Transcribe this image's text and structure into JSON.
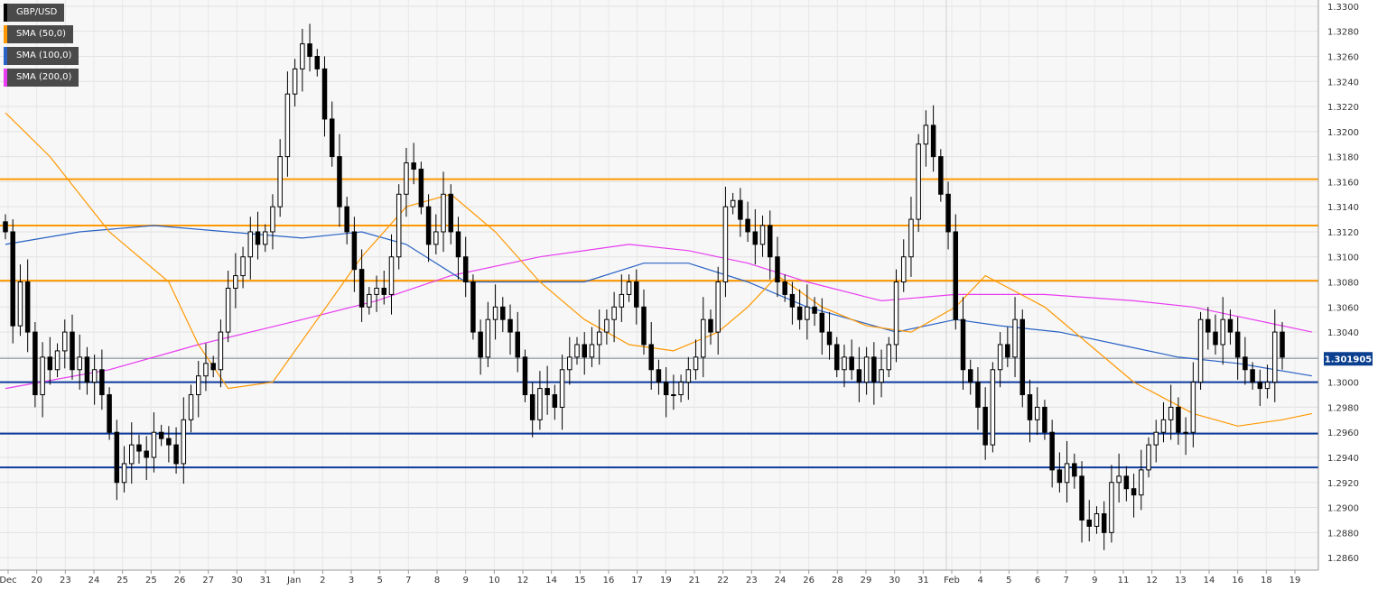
{
  "legend": {
    "symbol": "GBP/USD",
    "sma50": "SMA (50,0)",
    "sma100": "SMA (100,0)",
    "sma200": "SMA (200,0)"
  },
  "colors": {
    "symbol": "#000000",
    "sma50": "#ff9800",
    "sma100": "#2962c4",
    "sma200": "#e83cf0",
    "resistance": "#ff9800",
    "support": "#0d3a9c",
    "current": "#7f8c9c"
  },
  "chart_data": {
    "type": "candlestick",
    "symbol": "GBP/USD",
    "ylim": [
      1.285,
      1.3305
    ],
    "grid": true,
    "y_ticks": [
      "1.3300",
      "1.3280",
      "1.3260",
      "1.3240",
      "1.3220",
      "1.3200",
      "1.3180",
      "1.3160",
      "1.3140",
      "1.3120",
      "1.3100",
      "1.3080",
      "1.3060",
      "1.3040",
      "1.3020",
      "1.3000",
      "1.2980",
      "1.2960",
      "1.2940",
      "1.2920",
      "1.2900",
      "1.2880",
      "1.2860"
    ],
    "x_labels": [
      "Dec",
      "20",
      "23",
      "24",
      "25",
      "25",
      "26",
      "27",
      "30",
      "31",
      "Jan",
      "2",
      "3",
      "5",
      "7",
      "8",
      "9",
      "10",
      "12",
      "14",
      "15",
      "16",
      "17",
      "19",
      "21",
      "22",
      "23",
      "24",
      "26",
      "28",
      "29",
      "30",
      "31",
      "Feb",
      "4",
      "5",
      "6",
      "7",
      "9",
      "11",
      "12",
      "13",
      "14",
      "16",
      "18",
      "19"
    ],
    "current_price": 1.3019,
    "current_price_label": "1.301905",
    "horizontal_levels": {
      "resistance": [
        1.3162,
        1.3125,
        1.3081
      ],
      "support": [
        1.3,
        1.2959,
        1.2932
      ]
    },
    "closes": [
      1.312,
      1.3045,
      1.308,
      1.304,
      1.299,
      1.302,
      1.301,
      1.3025,
      1.304,
      1.301,
      1.302,
      1.3,
      1.301,
      1.299,
      1.296,
      1.292,
      1.2935,
      1.295,
      1.2945,
      1.294,
      1.296,
      1.2955,
      1.295,
      1.2935,
      1.297,
      1.299,
      1.3005,
      1.3015,
      1.301,
      1.304,
      1.3075,
      1.3085,
      1.31,
      1.312,
      1.311,
      1.312,
      1.314,
      1.318,
      1.323,
      1.325,
      1.327,
      1.326,
      1.325,
      1.321,
      1.318,
      1.314,
      1.312,
      1.309,
      1.306,
      1.307,
      1.3075,
      1.307,
      1.31,
      1.315,
      1.3175,
      1.317,
      1.314,
      1.311,
      1.312,
      1.315,
      1.312,
      1.31,
      1.308,
      1.304,
      1.302,
      1.305,
      1.306,
      1.305,
      1.304,
      1.302,
      1.299,
      1.297,
      1.2995,
      1.299,
      1.298,
      1.301,
      1.302,
      1.303,
      1.302,
      1.303,
      1.304,
      1.305,
      1.306,
      1.307,
      1.308,
      1.306,
      1.303,
      1.301,
      1.3,
      1.299,
      1.299,
      1.3,
      1.301,
      1.302,
      1.305,
      1.304,
      1.308,
      1.314,
      1.3145,
      1.313,
      1.312,
      1.311,
      1.3125,
      1.31,
      1.308,
      1.307,
      1.306,
      1.305,
      1.306,
      1.3055,
      1.304,
      1.303,
      1.301,
      1.302,
      1.301,
      1.3,
      1.302,
      1.3,
      1.301,
      1.303,
      1.308,
      1.31,
      1.313,
      1.319,
      1.3205,
      1.318,
      1.315,
      1.312,
      1.305,
      1.301,
      1.3,
      1.298,
      1.295,
      1.301,
      1.303,
      1.302,
      1.305,
      1.299,
      1.297,
      1.298,
      1.296,
      1.293,
      1.292,
      1.2935,
      1.2925,
      1.289,
      1.2885,
      1.2895,
      1.288,
      1.292,
      1.2925,
      1.2915,
      1.291,
      1.293,
      1.295,
      1.296,
      1.297,
      1.298,
      1.296,
      1.296,
      1.3,
      1.305,
      1.304,
      1.303,
      1.305,
      1.304,
      1.302,
      1.301,
      1.3,
      1.2995,
      1.3,
      1.304,
      1.302
    ],
    "sma50": [
      [
        1.3215,
        0
      ],
      [
        1.318,
        6
      ],
      [
        1.312,
        14
      ],
      [
        1.308,
        22
      ],
      [
        1.303,
        26
      ],
      [
        1.2995,
        30
      ],
      [
        1.3,
        36
      ],
      [
        1.305,
        42
      ],
      [
        1.31,
        48
      ],
      [
        1.314,
        54
      ],
      [
        1.315,
        60
      ],
      [
        1.312,
        66
      ],
      [
        1.308,
        72
      ],
      [
        1.305,
        78
      ],
      [
        1.303,
        84
      ],
      [
        1.3025,
        90
      ],
      [
        1.304,
        96
      ],
      [
        1.306,
        100
      ],
      [
        1.3085,
        104
      ],
      [
        1.306,
        110
      ],
      [
        1.3045,
        116
      ],
      [
        1.304,
        122
      ],
      [
        1.306,
        128
      ],
      [
        1.3085,
        132
      ],
      [
        1.306,
        140
      ],
      [
        1.303,
        146
      ],
      [
        1.3,
        152
      ],
      [
        1.2975,
        160
      ],
      [
        1.2965,
        166
      ],
      [
        1.297,
        172
      ],
      [
        1.2975,
        176
      ]
    ],
    "sma100": [
      [
        1.311,
        0
      ],
      [
        1.312,
        10
      ],
      [
        1.3125,
        20
      ],
      [
        1.312,
        30
      ],
      [
        1.3115,
        40
      ],
      [
        1.312,
        48
      ],
      [
        1.311,
        54
      ],
      [
        1.308,
        62
      ],
      [
        1.308,
        70
      ],
      [
        1.308,
        78
      ],
      [
        1.3095,
        86
      ],
      [
        1.3095,
        92
      ],
      [
        1.308,
        100
      ],
      [
        1.306,
        108
      ],
      [
        1.305,
        114
      ],
      [
        1.304,
        120
      ],
      [
        1.305,
        128
      ],
      [
        1.3045,
        134
      ],
      [
        1.304,
        142
      ],
      [
        1.303,
        150
      ],
      [
        1.302,
        158
      ],
      [
        1.3015,
        166
      ],
      [
        1.3005,
        176
      ]
    ],
    "sma200": [
      [
        1.2995,
        0
      ],
      [
        1.301,
        14
      ],
      [
        1.303,
        26
      ],
      [
        1.305,
        40
      ],
      [
        1.3065,
        50
      ],
      [
        1.3085,
        60
      ],
      [
        1.31,
        72
      ],
      [
        1.311,
        84
      ],
      [
        1.3105,
        92
      ],
      [
        1.3095,
        100
      ],
      [
        1.308,
        108
      ],
      [
        1.3065,
        118
      ],
      [
        1.307,
        128
      ],
      [
        1.307,
        140
      ],
      [
        1.3065,
        152
      ],
      [
        1.306,
        160
      ],
      [
        1.305,
        168
      ],
      [
        1.304,
        176
      ]
    ]
  }
}
